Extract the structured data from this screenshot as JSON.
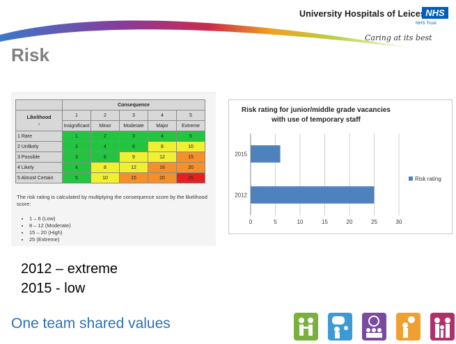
{
  "header": {
    "org_name": "University Hospitals of Leicester",
    "nhs_logo": "NHS",
    "nhs_trust": "NHS Trust",
    "tagline": "Caring at its best"
  },
  "slide": {
    "title": "Risk",
    "bullets": [
      "2012 – extreme",
      "2015 -  low"
    ],
    "footer_slogan": "One team shared values"
  },
  "risk_matrix": {
    "consequence_header": "Consequence",
    "likelihood_header": "Likelihood",
    "likelihood_arrow": "↓",
    "consequence_levels": [
      {
        "num": "1",
        "label": "Insignificant"
      },
      {
        "num": "2",
        "label": "Minor"
      },
      {
        "num": "3",
        "label": "Moderate"
      },
      {
        "num": "4",
        "label": "Major"
      },
      {
        "num": "5",
        "label": "Extreme"
      }
    ],
    "rows": [
      {
        "label": "1 Rare",
        "scores": [
          "1",
          "2",
          "3",
          "4",
          "5"
        ],
        "colors": [
          "g",
          "g",
          "g",
          "g",
          "g"
        ]
      },
      {
        "label": "2 Unlikely",
        "scores": [
          "2",
          "4",
          "6",
          "8",
          "10"
        ],
        "colors": [
          "g",
          "g",
          "g",
          "y",
          "y"
        ]
      },
      {
        "label": "3 Possible",
        "scores": [
          "3",
          "6",
          "9",
          "12",
          "15"
        ],
        "colors": [
          "g",
          "g",
          "y",
          "y",
          "o"
        ]
      },
      {
        "label": "4 Likely",
        "scores": [
          "4",
          "8",
          "12",
          "16",
          "20"
        ],
        "colors": [
          "g",
          "y",
          "y",
          "o",
          "o"
        ]
      },
      {
        "label": "5 Almost Certain",
        "scores": [
          "5",
          "10",
          "15",
          "20",
          "25"
        ],
        "colors": [
          "g",
          "y",
          "o",
          "o",
          "r"
        ]
      }
    ],
    "note": "The risk rating is calculated by multiplying the consequence score by the likelihood score:",
    "score_bands": [
      "1 – 6 (Low)",
      "8 – 12 (Moderate)",
      "15 – 20 (High)",
      "25 (Extreme)"
    ],
    "cell_colors": {
      "g": "#22c440",
      "y": "#f0f030",
      "o": "#f4902a",
      "r": "#e42020"
    }
  },
  "chart_data": {
    "type": "bar",
    "orientation": "horizontal",
    "title": "Risk rating for junior/middle grade vacancies with use of temporary staff",
    "title_lines": [
      "Risk rating for junior/middle grade vacancies",
      "with use of temporary staff"
    ],
    "categories": [
      "2015",
      "2012"
    ],
    "series": [
      {
        "name": "Risk rating",
        "values": [
          6,
          25
        ],
        "color": "#4f81bd"
      }
    ],
    "xlim": [
      0,
      30
    ],
    "x_ticks": [
      "0",
      "5",
      "10",
      "15",
      "20",
      "25",
      "30"
    ],
    "grid": "vertical",
    "legend": "right"
  },
  "value_icons": [
    {
      "name": "team-people-icon",
      "color": "#7ab03e"
    },
    {
      "name": "speech-bubble-icon",
      "color": "#3a9bd5"
    },
    {
      "name": "group-circle-icon",
      "color": "#7a4a9e"
    },
    {
      "name": "lightbulb-idea-icon",
      "color": "#f0a030"
    },
    {
      "name": "family-icon",
      "color": "#b0306a"
    }
  ]
}
